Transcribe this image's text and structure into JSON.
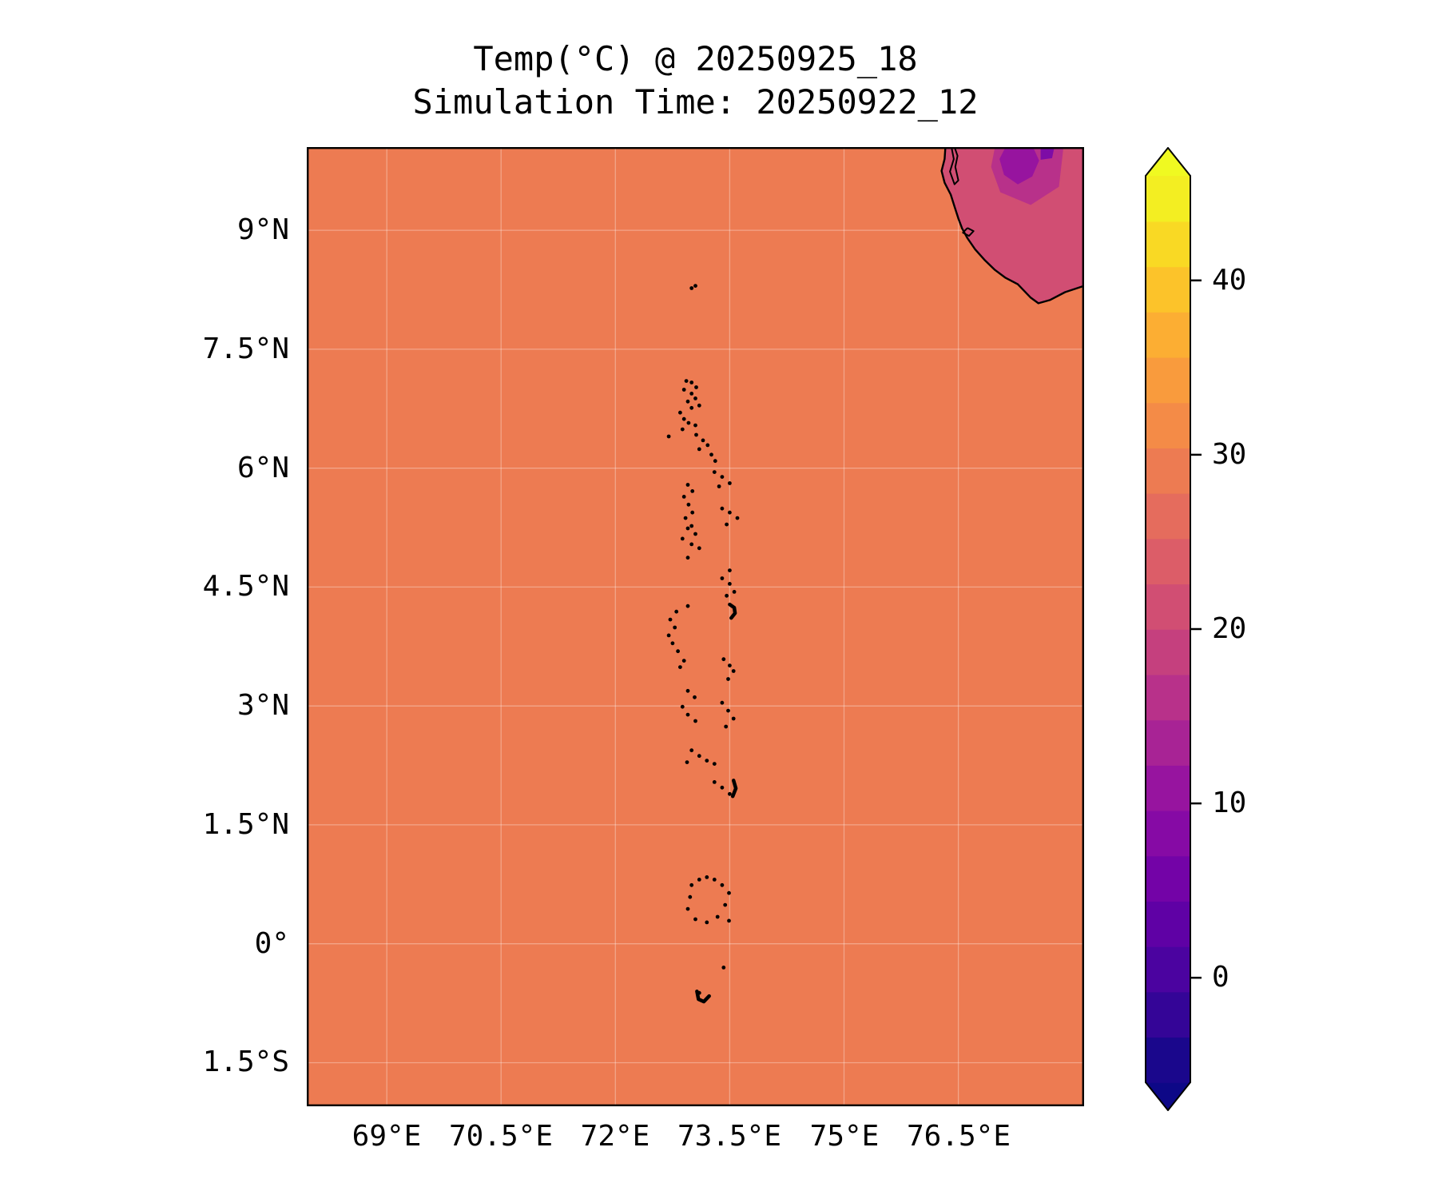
{
  "figure": {
    "title": "Temp(°C) @ 20250925_18",
    "subtitle": "Simulation Time: 20250922_12",
    "background": "#ffffff"
  },
  "chart_data": {
    "type": "heatmap",
    "title": "Temp(°C) @ 20250925_18",
    "subtitle": "Simulation Time: 20250922_12",
    "description": "Surface temperature field over the Maldives / southern India ocean domain; near-uniform sea temperature with cooler land in the northeast corner (southwest India).",
    "x_axis": {
      "tick_labels": [
        "69°E",
        "70.5°E",
        "72°E",
        "73.5°E",
        "75°E",
        "76.5°E"
      ],
      "tick_values": [
        69,
        70.5,
        72,
        73.5,
        75,
        76.5
      ],
      "range": [
        67.95,
        78.15
      ]
    },
    "y_axis": {
      "tick_labels": [
        "1.5°S",
        "0°",
        "1.5°N",
        "3°N",
        "4.5°N",
        "6°N",
        "7.5°N",
        "9°N"
      ],
      "tick_values": [
        -1.5,
        0,
        1.5,
        3,
        4.5,
        6,
        7.5,
        9
      ],
      "range": [
        -2.05,
        10.05
      ]
    },
    "colorbar": {
      "colormap": "plasma",
      "vmin": -6,
      "vmax": 46,
      "tick_values": [
        0,
        10,
        20,
        30,
        40
      ],
      "tick_labels": [
        "0",
        "10",
        "20",
        "30",
        "40"
      ],
      "band_colors": [
        "#1a078c",
        "#340597",
        "#4b03a0",
        "#5f01a5",
        "#7303a7",
        "#860aa5",
        "#97149f",
        "#a82395",
        "#b8318a",
        "#c5407e",
        "#d14e73",
        "#dc5d68",
        "#e56c5d",
        "#ed7b52",
        "#f48b47",
        "#f99b3d",
        "#fcae33",
        "#fcc32a",
        "#f9d924",
        "#f3ee22"
      ],
      "under_color": "#0d0887",
      "over_color": "#f0f921"
    },
    "field": {
      "sea_value_c": 28,
      "sea_color": "#ed7b52",
      "land_value_c": 22,
      "land_color": "#d14e73",
      "inland_cool_value_c": 18,
      "inland_cool_color": "#b8318a",
      "ghats_cool_value_c": 13,
      "ghats_cool_color": "#97149f",
      "ghats_cold_value_c": 9,
      "ghats_cold_color": "#7d0ca6"
    },
    "features": {
      "grid_color": "rgba(255,255,255,0.32)",
      "coast_color": "#000000",
      "india_coast_polygon": [
        [
          76.33,
          10.05
        ],
        [
          76.32,
          9.9
        ],
        [
          76.28,
          9.75
        ],
        [
          76.32,
          9.6
        ],
        [
          76.4,
          9.45
        ],
        [
          76.45,
          9.3
        ],
        [
          76.5,
          9.15
        ],
        [
          76.55,
          9.02
        ],
        [
          76.62,
          8.9
        ],
        [
          76.72,
          8.76
        ],
        [
          76.85,
          8.62
        ],
        [
          76.98,
          8.5
        ],
        [
          77.12,
          8.4
        ],
        [
          77.28,
          8.32
        ],
        [
          77.45,
          8.15
        ],
        [
          77.55,
          8.08
        ],
        [
          77.7,
          8.12
        ],
        [
          77.9,
          8.22
        ],
        [
          78.15,
          8.3
        ],
        [
          78.15,
          10.05
        ]
      ],
      "inland_cool_patch": [
        [
          76.98,
          10.05
        ],
        [
          77.88,
          10.05
        ],
        [
          77.82,
          9.55
        ],
        [
          77.45,
          9.32
        ],
        [
          77.05,
          9.48
        ],
        [
          76.93,
          9.8
        ]
      ],
      "ghats_cool_patch": [
        [
          77.12,
          10.05
        ],
        [
          77.48,
          10.05
        ],
        [
          77.56,
          9.88
        ],
        [
          77.47,
          9.68
        ],
        [
          77.28,
          9.58
        ],
        [
          77.1,
          9.7
        ],
        [
          77.04,
          9.9
        ]
      ],
      "ghats_cold_patch": [
        [
          77.58,
          10.05
        ],
        [
          77.76,
          10.05
        ],
        [
          77.73,
          9.91
        ],
        [
          77.58,
          9.89
        ]
      ],
      "lakes": [
        [
          [
            76.41,
            10.05
          ],
          [
            76.44,
            9.9
          ],
          [
            76.39,
            9.74
          ],
          [
            76.45,
            9.58
          ],
          [
            76.5,
            9.63
          ],
          [
            76.46,
            9.8
          ],
          [
            76.49,
            9.94
          ],
          [
            76.45,
            10.05
          ]
        ],
        [
          [
            76.62,
            9.03
          ],
          [
            76.7,
            8.99
          ],
          [
            76.64,
            8.93
          ],
          [
            76.56,
            8.97
          ],
          [
            76.62,
            9.03
          ]
        ]
      ],
      "maldives_atoll_points": [
        [
          73.05,
          8.3
        ],
        [
          73.0,
          8.27
        ],
        [
          72.93,
          7.1
        ],
        [
          73.0,
          7.08
        ],
        [
          73.06,
          7.02
        ],
        [
          72.9,
          6.99
        ],
        [
          73.0,
          6.94
        ],
        [
          73.05,
          6.88
        ],
        [
          72.95,
          6.84
        ],
        [
          73.1,
          6.79
        ],
        [
          73.0,
          6.76
        ],
        [
          72.85,
          6.7
        ],
        [
          72.9,
          6.62
        ],
        [
          72.96,
          6.57
        ],
        [
          73.05,
          6.54
        ],
        [
          72.88,
          6.49
        ],
        [
          72.7,
          6.4
        ],
        [
          73.06,
          6.42
        ],
        [
          73.15,
          6.35
        ],
        [
          73.21,
          6.29
        ],
        [
          73.1,
          6.24
        ],
        [
          73.26,
          6.17
        ],
        [
          73.31,
          6.09
        ],
        [
          73.3,
          5.95
        ],
        [
          73.4,
          5.89
        ],
        [
          73.5,
          5.81
        ],
        [
          73.36,
          5.77
        ],
        [
          72.95,
          5.79
        ],
        [
          73.01,
          5.71
        ],
        [
          72.9,
          5.64
        ],
        [
          72.96,
          5.54
        ],
        [
          73.01,
          5.44
        ],
        [
          72.92,
          5.37
        ],
        [
          73.0,
          5.27
        ],
        [
          73.4,
          5.49
        ],
        [
          73.5,
          5.44
        ],
        [
          73.6,
          5.37
        ],
        [
          73.46,
          5.29
        ],
        [
          72.95,
          5.24
        ],
        [
          73.05,
          5.17
        ],
        [
          72.88,
          5.11
        ],
        [
          73.0,
          5.04
        ],
        [
          73.1,
          4.99
        ],
        [
          72.95,
          4.87
        ],
        [
          73.5,
          4.71
        ],
        [
          73.4,
          4.61
        ],
        [
          73.5,
          4.54
        ],
        [
          73.56,
          4.44
        ],
        [
          73.46,
          4.39
        ],
        [
          72.95,
          4.26
        ],
        [
          72.8,
          4.19
        ],
        [
          72.72,
          4.09
        ],
        [
          72.78,
          3.99
        ],
        [
          72.7,
          3.89
        ],
        [
          72.75,
          3.79
        ],
        [
          72.82,
          3.69
        ],
        [
          72.9,
          3.57
        ],
        [
          72.85,
          3.49
        ],
        [
          73.42,
          3.59
        ],
        [
          73.5,
          3.51
        ],
        [
          73.55,
          3.44
        ],
        [
          73.48,
          3.34
        ],
        [
          72.95,
          3.19
        ],
        [
          73.04,
          3.11
        ],
        [
          72.88,
          2.99
        ],
        [
          72.95,
          2.89
        ],
        [
          73.05,
          2.81
        ],
        [
          73.4,
          3.04
        ],
        [
          73.48,
          2.94
        ],
        [
          73.55,
          2.84
        ],
        [
          73.45,
          2.74
        ],
        [
          72.94,
          2.29
        ],
        [
          73.0,
          2.44
        ],
        [
          73.1,
          2.37
        ],
        [
          73.2,
          2.31
        ],
        [
          73.3,
          2.27
        ],
        [
          73.3,
          2.04
        ],
        [
          73.4,
          1.97
        ],
        [
          73.5,
          1.89
        ],
        [
          73.0,
          0.74
        ],
        [
          73.1,
          0.81
        ],
        [
          73.2,
          0.84
        ],
        [
          73.3,
          0.81
        ],
        [
          73.4,
          0.74
        ],
        [
          73.49,
          0.64
        ],
        [
          73.44,
          0.49
        ],
        [
          73.34,
          0.34
        ],
        [
          73.2,
          0.27
        ],
        [
          73.05,
          0.31
        ],
        [
          72.95,
          0.44
        ],
        [
          72.98,
          0.59
        ],
        [
          73.49,
          0.29
        ],
        [
          73.42,
          -0.3
        ],
        [
          73.1,
          -0.62
        ]
      ],
      "maldives_island_segments": [
        [
          [
            73.5,
            4.28
          ],
          [
            73.56,
            4.24
          ],
          [
            73.57,
            4.17
          ],
          [
            73.52,
            4.11
          ]
        ],
        [
          [
            73.55,
            2.06
          ],
          [
            73.58,
            1.96
          ],
          [
            73.54,
            1.86
          ]
        ],
        [
          [
            73.07,
            -0.6
          ],
          [
            73.09,
            -0.7
          ],
          [
            73.16,
            -0.73
          ],
          [
            73.23,
            -0.66
          ]
        ]
      ]
    }
  }
}
